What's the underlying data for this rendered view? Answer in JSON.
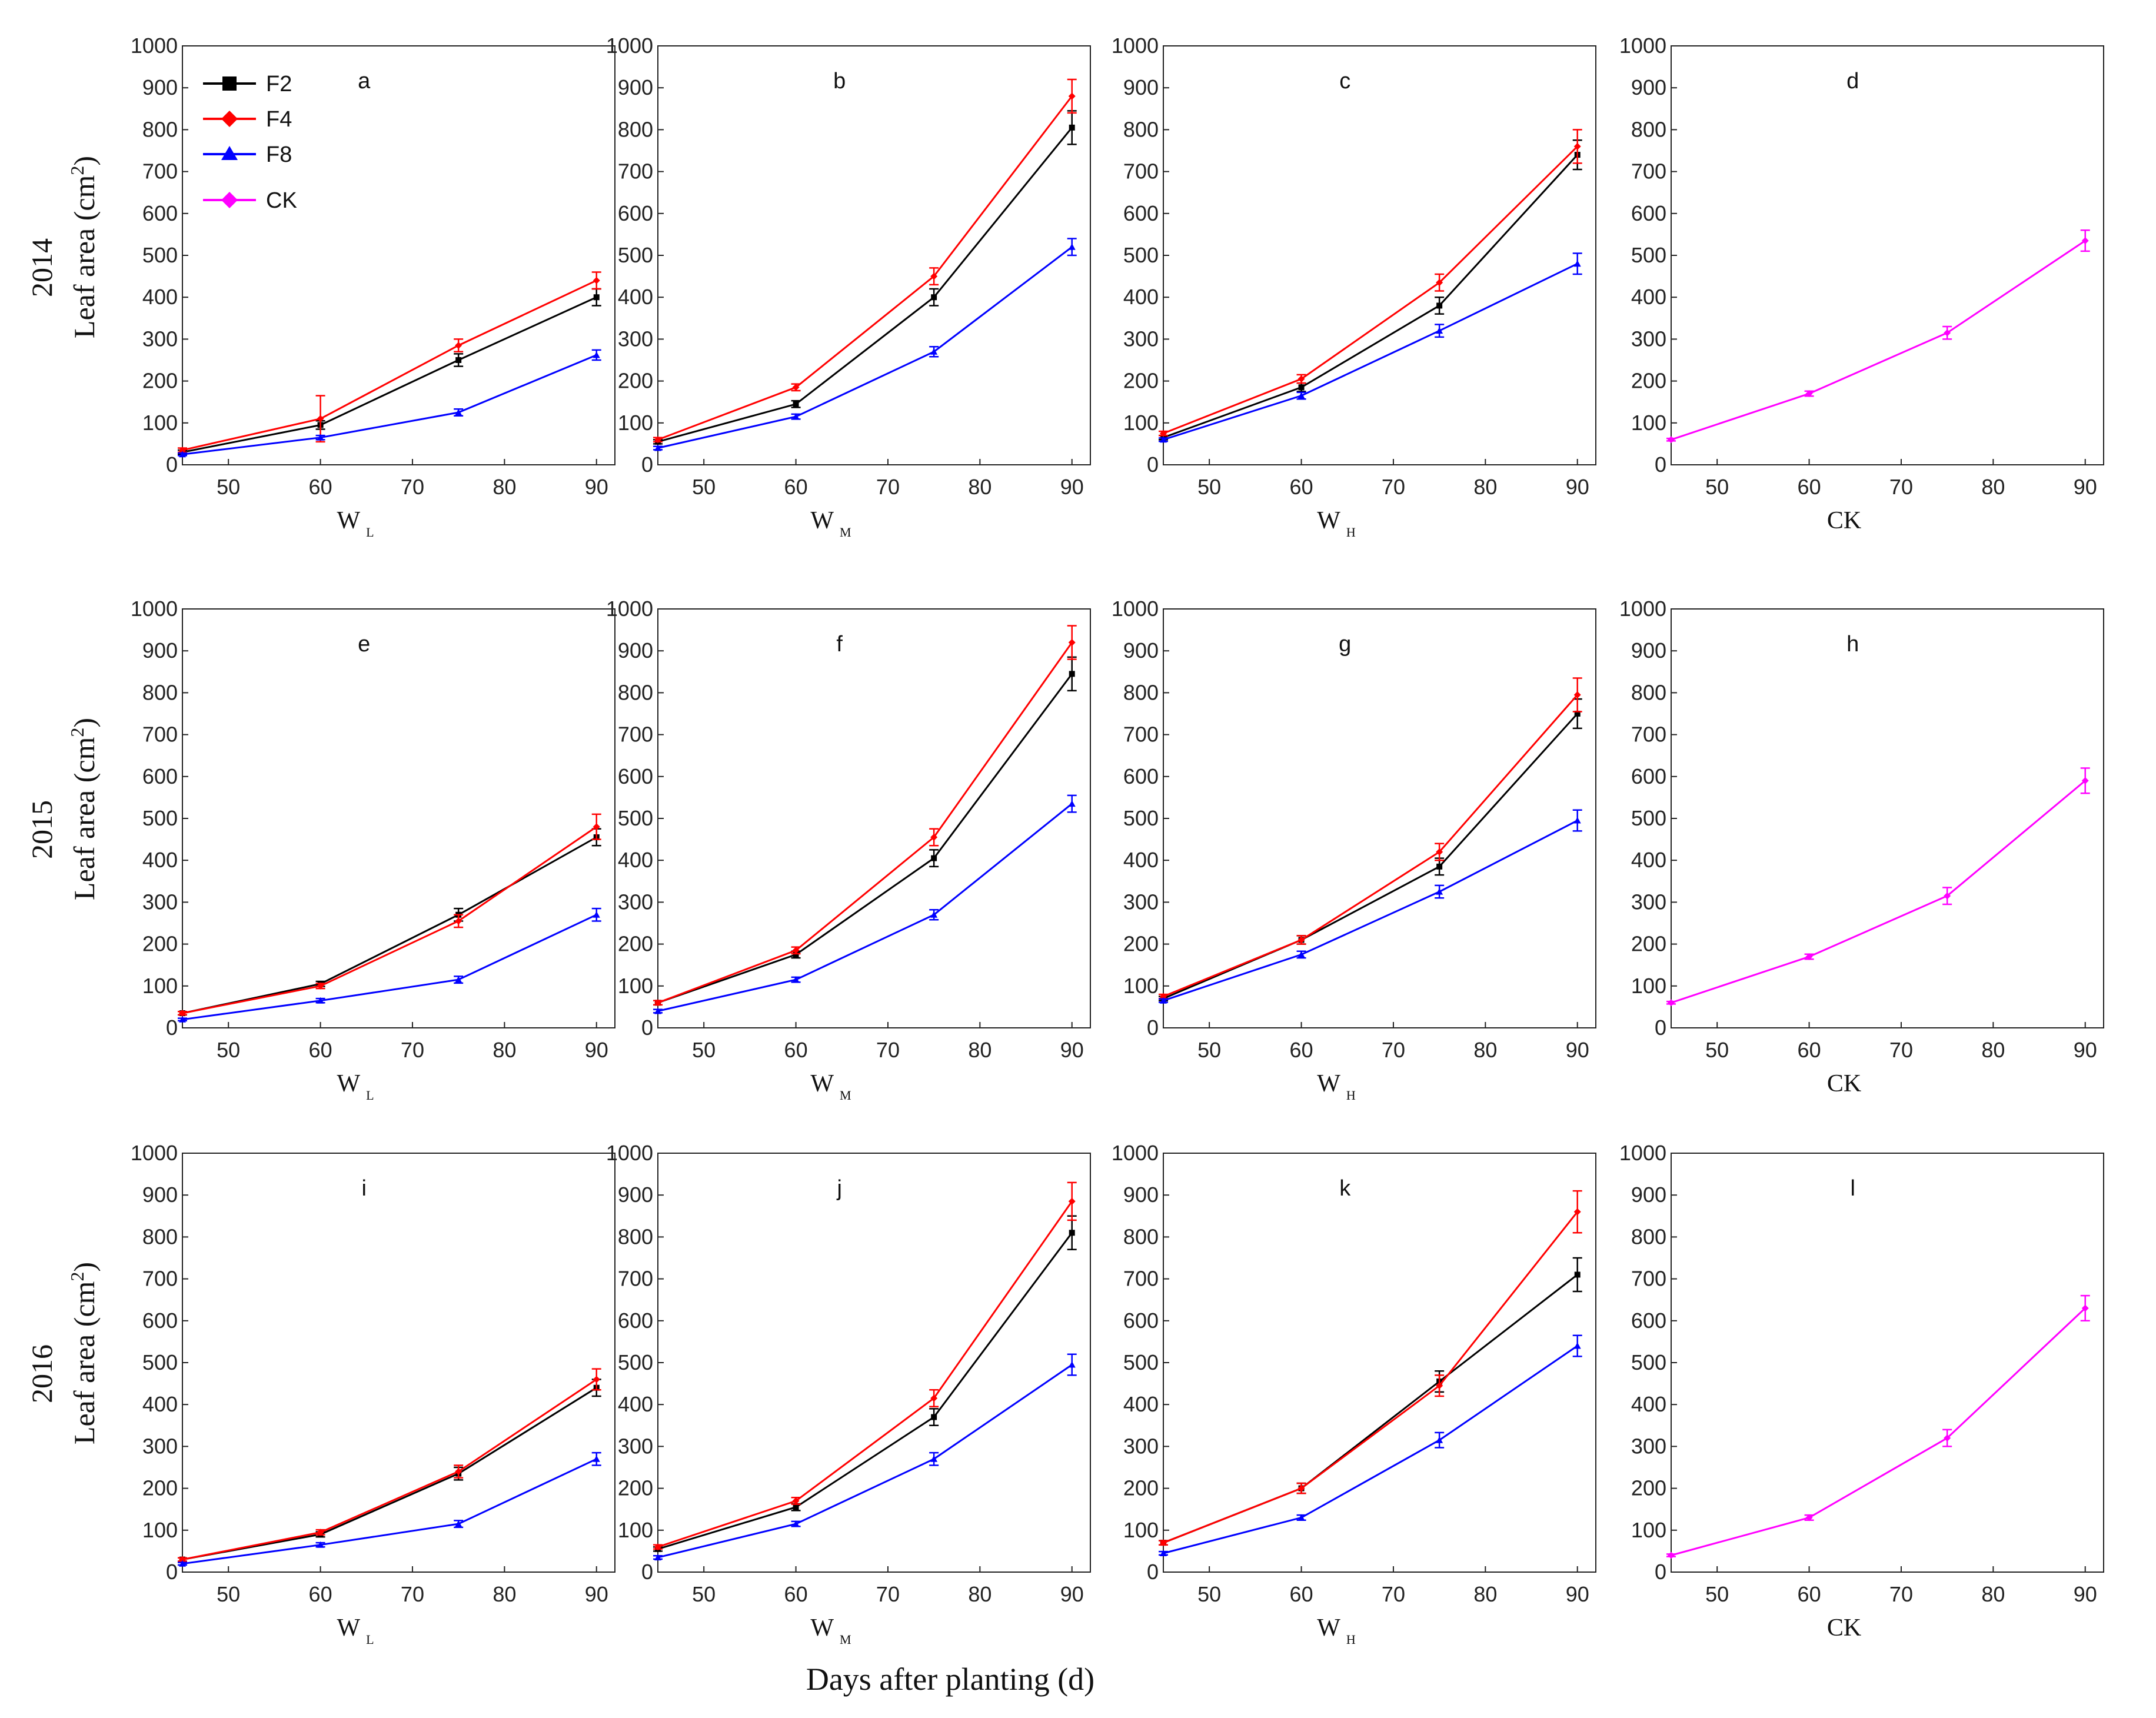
{
  "figure": {
    "xlabel": "Days after planting (d)",
    "ylabel": "Leaf area (cm",
    "ylabel_sup": "2",
    "ylabel_close": ")"
  },
  "legend": [
    {
      "name": "F2",
      "color": "#000000"
    },
    {
      "name": "F4",
      "color": "#ff0000"
    },
    {
      "name": "F8",
      "color": "#0000ff"
    },
    {
      "name": "CK",
      "color": "#ff00ff"
    }
  ],
  "rows": [
    "2014",
    "2015",
    "2016"
  ],
  "chart_data": [
    {
      "type": "line",
      "id": "a",
      "panel_label": "a",
      "xlabel": "W",
      "xlabel_sub": "L",
      "row": 0,
      "col": 0,
      "x": [
        45,
        60,
        75,
        90
      ],
      "xticks": [
        50,
        60,
        70,
        80,
        90
      ],
      "xlim": [
        45,
        92
      ],
      "ylim": [
        0,
        1000
      ],
      "yticks": [
        0,
        100,
        200,
        300,
        400,
        500,
        600,
        700,
        800,
        900,
        1000
      ],
      "series": [
        {
          "name": "F2",
          "color": "#000000",
          "values": [
            30,
            95,
            250,
            400
          ],
          "errors": [
            5,
            10,
            15,
            20
          ]
        },
        {
          "name": "F4",
          "color": "#ff0000",
          "values": [
            35,
            110,
            285,
            440
          ],
          "errors": [
            5,
            55,
            15,
            20
          ]
        },
        {
          "name": "F8",
          "color": "#0000ff",
          "values": [
            25,
            65,
            125,
            262
          ],
          "errors": [
            3,
            5,
            8,
            12
          ]
        }
      ]
    },
    {
      "type": "line",
      "id": "b",
      "panel_label": "b",
      "xlabel": "W",
      "xlabel_sub": "M",
      "row": 0,
      "col": 1,
      "x": [
        45,
        60,
        75,
        90
      ],
      "xticks": [
        50,
        60,
        70,
        80,
        90
      ],
      "xlim": [
        45,
        92
      ],
      "ylim": [
        0,
        1000
      ],
      "yticks": [
        0,
        100,
        200,
        300,
        400,
        500,
        600,
        700,
        800,
        900,
        1000
      ],
      "series": [
        {
          "name": "F2",
          "color": "#000000",
          "values": [
            55,
            145,
            400,
            805
          ],
          "errors": [
            5,
            8,
            20,
            40
          ]
        },
        {
          "name": "F4",
          "color": "#ff0000",
          "values": [
            60,
            185,
            450,
            880
          ],
          "errors": [
            5,
            8,
            20,
            40
          ]
        },
        {
          "name": "F8",
          "color": "#0000ff",
          "values": [
            40,
            115,
            270,
            520
          ],
          "errors": [
            4,
            6,
            12,
            20
          ]
        }
      ]
    },
    {
      "type": "line",
      "id": "c",
      "panel_label": "c",
      "xlabel": "W",
      "xlabel_sub": "H",
      "row": 0,
      "col": 2,
      "x": [
        45,
        60,
        75,
        90
      ],
      "xticks": [
        50,
        60,
        70,
        80,
        90
      ],
      "xlim": [
        45,
        92
      ],
      "ylim": [
        0,
        1000
      ],
      "yticks": [
        0,
        100,
        200,
        300,
        400,
        500,
        600,
        700,
        800,
        900,
        1000
      ],
      "series": [
        {
          "name": "F2",
          "color": "#000000",
          "values": [
            65,
            185,
            380,
            740
          ],
          "errors": [
            5,
            10,
            20,
            35
          ]
        },
        {
          "name": "F4",
          "color": "#ff0000",
          "values": [
            75,
            205,
            435,
            760
          ],
          "errors": [
            5,
            10,
            20,
            40
          ]
        },
        {
          "name": "F8",
          "color": "#0000ff",
          "values": [
            60,
            165,
            320,
            480
          ],
          "errors": [
            4,
            8,
            15,
            25
          ]
        }
      ]
    },
    {
      "type": "line",
      "id": "d",
      "panel_label": "d",
      "xlabel": "CK",
      "xlabel_sub": "",
      "row": 0,
      "col": 3,
      "x": [
        45,
        60,
        75,
        90
      ],
      "xticks": [
        50,
        60,
        70,
        80,
        90
      ],
      "xlim": [
        45,
        92
      ],
      "ylim": [
        0,
        1000
      ],
      "yticks": [
        0,
        100,
        200,
        300,
        400,
        500,
        600,
        700,
        800,
        900,
        1000
      ],
      "series": [
        {
          "name": "CK",
          "color": "#ff00ff",
          "values": [
            60,
            170,
            315,
            535
          ],
          "errors": [
            3,
            6,
            15,
            25
          ]
        }
      ]
    },
    {
      "type": "line",
      "id": "e",
      "panel_label": "e",
      "xlabel": "W",
      "xlabel_sub": "L",
      "row": 1,
      "col": 0,
      "x": [
        45,
        60,
        75,
        90
      ],
      "xticks": [
        50,
        60,
        70,
        80,
        90
      ],
      "xlim": [
        45,
        92
      ],
      "ylim": [
        0,
        1000
      ],
      "yticks": [
        0,
        100,
        200,
        300,
        400,
        500,
        600,
        700,
        800,
        900,
        1000
      ],
      "series": [
        {
          "name": "F2",
          "color": "#000000",
          "values": [
            35,
            105,
            270,
            455
          ],
          "errors": [
            4,
            6,
            15,
            20
          ]
        },
        {
          "name": "F4",
          "color": "#ff0000",
          "values": [
            35,
            100,
            255,
            480
          ],
          "errors": [
            4,
            6,
            15,
            30
          ]
        },
        {
          "name": "F8",
          "color": "#0000ff",
          "values": [
            20,
            65,
            115,
            270
          ],
          "errors": [
            3,
            5,
            8,
            15
          ]
        }
      ]
    },
    {
      "type": "line",
      "id": "f",
      "panel_label": "f",
      "xlabel": "W",
      "xlabel_sub": "M",
      "row": 1,
      "col": 1,
      "x": [
        45,
        60,
        75,
        90
      ],
      "xticks": [
        50,
        60,
        70,
        80,
        90
      ],
      "xlim": [
        45,
        92
      ],
      "ylim": [
        0,
        1000
      ],
      "yticks": [
        0,
        100,
        200,
        300,
        400,
        500,
        600,
        700,
        800,
        900,
        1000
      ],
      "series": [
        {
          "name": "F2",
          "color": "#000000",
          "values": [
            60,
            175,
            405,
            845
          ],
          "errors": [
            5,
            8,
            20,
            40
          ]
        },
        {
          "name": "F4",
          "color": "#ff0000",
          "values": [
            60,
            185,
            455,
            920
          ],
          "errors": [
            5,
            8,
            20,
            40
          ]
        },
        {
          "name": "F8",
          "color": "#0000ff",
          "values": [
            40,
            115,
            270,
            535
          ],
          "errors": [
            4,
            6,
            12,
            20
          ]
        }
      ]
    },
    {
      "type": "line",
      "id": "g",
      "panel_label": "g",
      "xlabel": "W",
      "xlabel_sub": "H",
      "row": 1,
      "col": 2,
      "x": [
        45,
        60,
        75,
        90
      ],
      "xticks": [
        50,
        60,
        70,
        80,
        90
      ],
      "xlim": [
        45,
        92
      ],
      "ylim": [
        0,
        1000
      ],
      "yticks": [
        0,
        100,
        200,
        300,
        400,
        500,
        600,
        700,
        800,
        900,
        1000
      ],
      "series": [
        {
          "name": "F2",
          "color": "#000000",
          "values": [
            70,
            210,
            385,
            750
          ],
          "errors": [
            5,
            10,
            20,
            35
          ]
        },
        {
          "name": "F4",
          "color": "#ff0000",
          "values": [
            75,
            210,
            420,
            795
          ],
          "errors": [
            5,
            10,
            20,
            40
          ]
        },
        {
          "name": "F8",
          "color": "#0000ff",
          "values": [
            65,
            175,
            325,
            495
          ],
          "errors": [
            4,
            8,
            15,
            25
          ]
        }
      ]
    },
    {
      "type": "line",
      "id": "h",
      "panel_label": "h",
      "xlabel": "CK",
      "xlabel_sub": "",
      "row": 1,
      "col": 3,
      "x": [
        45,
        60,
        75,
        90
      ],
      "xticks": [
        50,
        60,
        70,
        80,
        90
      ],
      "xlim": [
        45,
        92
      ],
      "ylim": [
        0,
        1000
      ],
      "yticks": [
        0,
        100,
        200,
        300,
        400,
        500,
        600,
        700,
        800,
        900,
        1000
      ],
      "series": [
        {
          "name": "CK",
          "color": "#ff00ff",
          "values": [
            60,
            170,
            315,
            590
          ],
          "errors": [
            3,
            6,
            20,
            30
          ]
        }
      ]
    },
    {
      "type": "line",
      "id": "i",
      "panel_label": "i",
      "xlabel": "W",
      "xlabel_sub": "L",
      "row": 2,
      "col": 0,
      "x": [
        45,
        60,
        75,
        90
      ],
      "xticks": [
        50,
        60,
        70,
        80,
        90
      ],
      "xlim": [
        45,
        92
      ],
      "ylim": [
        0,
        1000
      ],
      "yticks": [
        0,
        100,
        200,
        300,
        400,
        500,
        600,
        700,
        800,
        900,
        1000
      ],
      "series": [
        {
          "name": "F2",
          "color": "#000000",
          "values": [
            30,
            90,
            235,
            440
          ],
          "errors": [
            4,
            6,
            15,
            20
          ]
        },
        {
          "name": "F4",
          "color": "#ff0000",
          "values": [
            30,
            95,
            240,
            460
          ],
          "errors": [
            4,
            6,
            15,
            25
          ]
        },
        {
          "name": "F8",
          "color": "#0000ff",
          "values": [
            20,
            65,
            115,
            270
          ],
          "errors": [
            3,
            5,
            8,
            15
          ]
        }
      ]
    },
    {
      "type": "line",
      "id": "j",
      "panel_label": "j",
      "xlabel": "W",
      "xlabel_sub": "M",
      "row": 2,
      "col": 1,
      "x": [
        45,
        60,
        75,
        90
      ],
      "xticks": [
        50,
        60,
        70,
        80,
        90
      ],
      "xlim": [
        45,
        92
      ],
      "ylim": [
        0,
        1000
      ],
      "yticks": [
        0,
        100,
        200,
        300,
        400,
        500,
        600,
        700,
        800,
        900,
        1000
      ],
      "series": [
        {
          "name": "F2",
          "color": "#000000",
          "values": [
            55,
            155,
            370,
            810
          ],
          "errors": [
            5,
            8,
            20,
            40
          ]
        },
        {
          "name": "F4",
          "color": "#ff0000",
          "values": [
            60,
            170,
            415,
            885
          ],
          "errors": [
            5,
            8,
            20,
            45
          ]
        },
        {
          "name": "F8",
          "color": "#0000ff",
          "values": [
            35,
            115,
            270,
            495
          ],
          "errors": [
            4,
            6,
            15,
            25
          ]
        }
      ]
    },
    {
      "type": "line",
      "id": "k",
      "panel_label": "k",
      "xlabel": "W",
      "xlabel_sub": "H",
      "row": 2,
      "col": 2,
      "x": [
        45,
        60,
        75,
        90
      ],
      "xticks": [
        50,
        60,
        70,
        80,
        90
      ],
      "xlim": [
        45,
        92
      ],
      "ylim": [
        0,
        1000
      ],
      "yticks": [
        0,
        100,
        200,
        300,
        400,
        500,
        600,
        700,
        800,
        900,
        1000
      ],
      "series": [
        {
          "name": "F2",
          "color": "#000000",
          "values": [
            70,
            200,
            455,
            710
          ],
          "errors": [
            5,
            12,
            25,
            40
          ]
        },
        {
          "name": "F4",
          "color": "#ff0000",
          "values": [
            70,
            200,
            445,
            860
          ],
          "errors": [
            5,
            12,
            25,
            50
          ]
        },
        {
          "name": "F8",
          "color": "#0000ff",
          "values": [
            45,
            130,
            315,
            540
          ],
          "errors": [
            4,
            6,
            18,
            25
          ]
        }
      ]
    },
    {
      "type": "line",
      "id": "l",
      "panel_label": "l",
      "xlabel": "CK",
      "xlabel_sub": "",
      "row": 2,
      "col": 3,
      "x": [
        45,
        60,
        75,
        90
      ],
      "xticks": [
        50,
        60,
        70,
        80,
        90
      ],
      "xlim": [
        45,
        92
      ],
      "ylim": [
        0,
        1000
      ],
      "yticks": [
        0,
        100,
        200,
        300,
        400,
        500,
        600,
        700,
        800,
        900,
        1000
      ],
      "series": [
        {
          "name": "CK",
          "color": "#ff00ff",
          "values": [
            40,
            130,
            320,
            630
          ],
          "errors": [
            3,
            6,
            20,
            30
          ]
        }
      ]
    }
  ]
}
